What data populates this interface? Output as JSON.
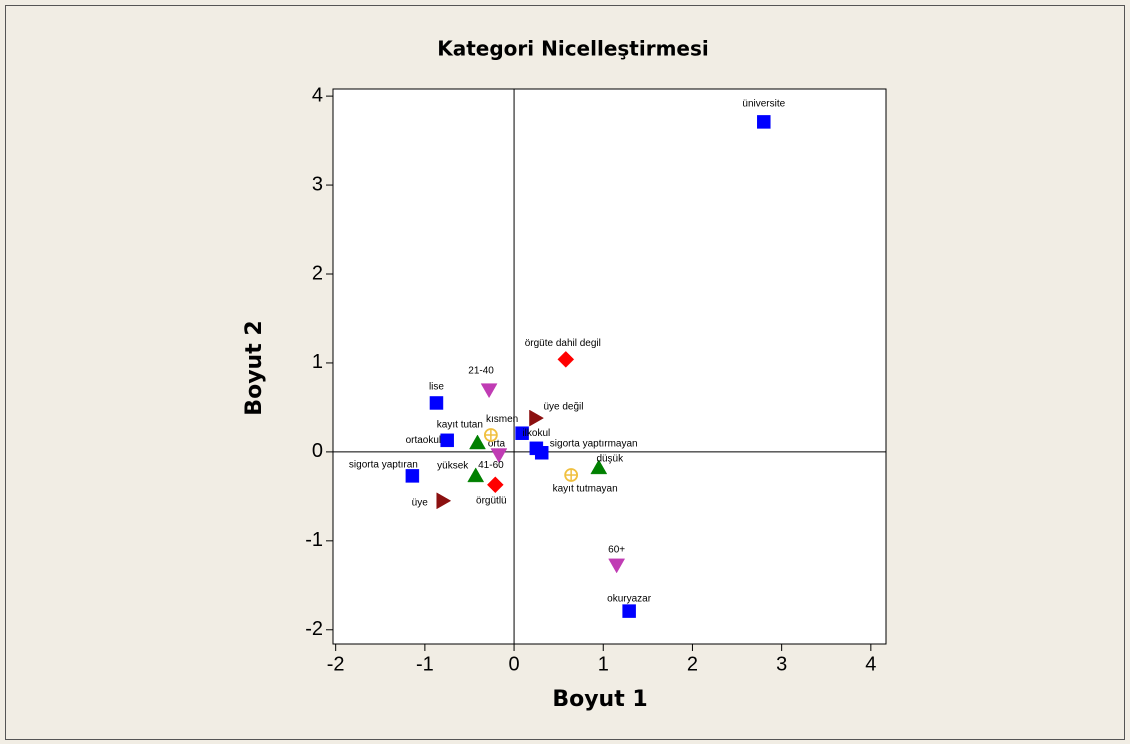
{
  "chart_data": {
    "type": "scatter",
    "title": "Kategori Nicelleştirmesi",
    "x_label": "Boyut 1",
    "y_label": "Boyut 2",
    "xlim": [
      -2.03,
      4.17
    ],
    "ylim": [
      -2.16,
      4.08
    ],
    "xticks": [
      -2,
      -1,
      0,
      1,
      2,
      3,
      4
    ],
    "yticks": [
      -2,
      -1,
      0,
      1,
      2,
      3,
      4
    ],
    "reference_lines": {
      "x": 0,
      "y": 0
    },
    "series": [
      {
        "marker": "square",
        "color": "#0000ff",
        "labels": [
          "üniversite",
          "lise",
          "ortaokul",
          "kısmen",
          "ilkokul",
          "sigorta yaptırmayan",
          "sigorta yaptıran",
          "okuryazar"
        ],
        "x": [
          2.8,
          -0.87,
          -0.75,
          0.09,
          0.25,
          0.31,
          -1.14,
          1.29
        ],
        "y": [
          3.71,
          0.55,
          0.13,
          0.21,
          0.04,
          -0.01,
          -0.27,
          -1.79
        ]
      },
      {
        "marker": "diamond",
        "color": "#ff0000",
        "labels": [
          "örgüte dahil degil",
          "örgütlü"
        ],
        "x": [
          0.58,
          -0.21
        ],
        "y": [
          1.04,
          -0.37
        ]
      },
      {
        "marker": "triangle-right",
        "color": "#8b1010",
        "labels": [
          "üye değil",
          "üye"
        ],
        "x": [
          0.24,
          -0.8
        ],
        "y": [
          0.38,
          -0.55
        ]
      },
      {
        "marker": "triangle-down",
        "color": "#c03cb4",
        "labels": [
          "21-40",
          "41-60",
          "60+"
        ],
        "x": [
          -0.28,
          -0.17,
          1.15
        ],
        "y": [
          0.7,
          -0.03,
          -1.27
        ]
      },
      {
        "marker": "triangle-up",
        "color": "#008000",
        "labels": [
          "orta",
          "yüksek",
          "düşük"
        ],
        "x": [
          -0.41,
          -0.43,
          0.95
        ],
        "y": [
          0.1,
          -0.27,
          -0.18
        ]
      },
      {
        "marker": "circle-plus",
        "color": "#f0c040",
        "labels": [
          "kayıt tutan",
          "kayıt tutmayan"
        ],
        "x": [
          -0.26,
          0.64
        ],
        "y": [
          0.19,
          -0.26
        ]
      }
    ]
  }
}
